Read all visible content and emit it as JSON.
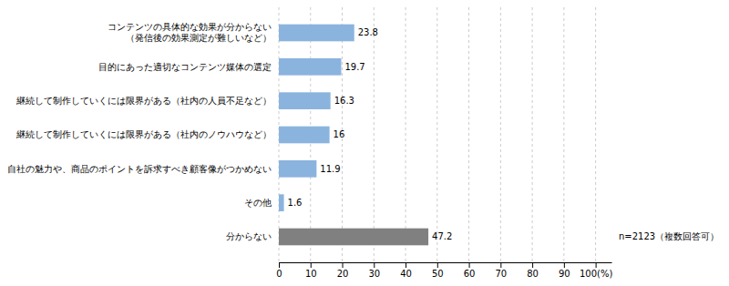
{
  "chart_data": {
    "type": "bar",
    "orientation": "horizontal",
    "categories": [
      "コンテンツの具体的な効果が分からない\n（発信後の効果測定が難しいなど）",
      "目的にあった適切なコンテンツ媒体の選定",
      "継続して制作していくには限界がある（社内の人員不足など）",
      "継続して制作していくには限界がある（社内のノウハウなど）",
      "自社の魅力や、商品のポイントを訴求すべき顧客像がつかめない",
      "その他",
      "分からない"
    ],
    "values": [
      23.8,
      19.7,
      16.3,
      16.0,
      11.9,
      1.6,
      47.2
    ],
    "colors": [
      "#8ab4de",
      "#8ab4de",
      "#8ab4de",
      "#8ab4de",
      "#8ab4de",
      "#8ab4de",
      "#808080"
    ],
    "xlim": [
      0,
      105
    ],
    "xticks": [
      0,
      10,
      20,
      30,
      40,
      50,
      60,
      70,
      80,
      90,
      {
        "value": 100,
        "label": "100(%)"
      }
    ],
    "grid": true,
    "data_labels": true,
    "annotation": "n=2123（複数回答可）"
  }
}
